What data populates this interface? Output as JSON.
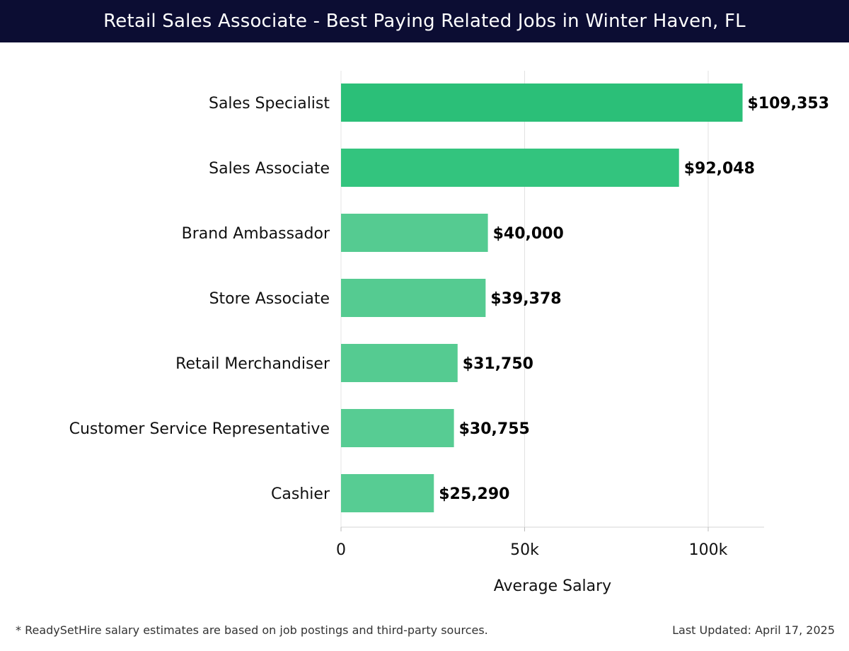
{
  "header": {
    "title": "Retail Sales Associate - Best Paying Related Jobs in Winter Haven, FL",
    "background_color": "#0c0d33"
  },
  "chart_data": {
    "type": "bar",
    "orientation": "horizontal",
    "title": "Retail Sales Associate - Best Paying Related Jobs in Winter Haven, FL",
    "xlabel": "Average Salary",
    "ylabel": "",
    "categories": [
      "Sales Specialist",
      "Sales Associate",
      "Brand Ambassador",
      "Store Associate",
      "Retail Merchandiser",
      "Customer Service Representative",
      "Cashier"
    ],
    "values": [
      109353,
      92048,
      40000,
      39378,
      31750,
      30755,
      25290
    ],
    "value_labels": [
      "$109,353",
      "$92,048",
      "$40,000",
      "$39,378",
      "$31,750",
      "$30,755",
      "$25,290"
    ],
    "bar_colors": [
      "#2bbf78",
      "#33c47e",
      "#55cb91",
      "#55cb91",
      "#55cb91",
      "#57cc93",
      "#57cc93"
    ],
    "xlim": [
      0,
      115000
    ],
    "xticks": [
      0,
      50000,
      100000
    ],
    "xtick_labels": [
      "0",
      "50k",
      "100k"
    ],
    "grid": true
  },
  "footer": {
    "note": "* ReadySetHire salary estimates are based on job postings and third-party sources.",
    "updated": "Last Updated: April 17, 2025"
  }
}
